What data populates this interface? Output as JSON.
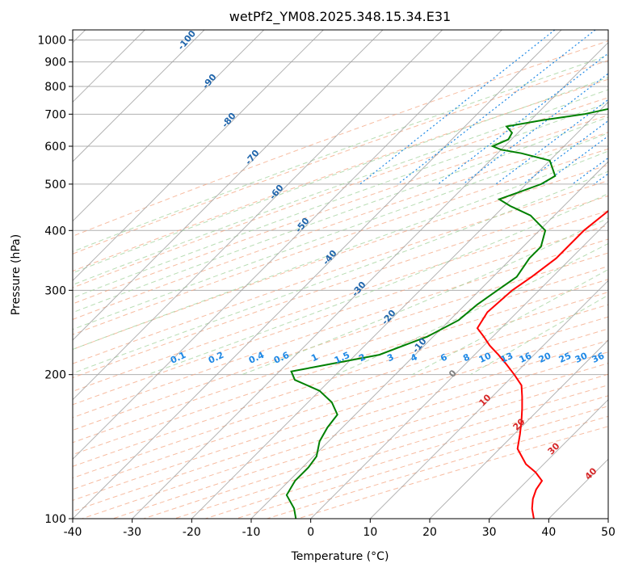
{
  "chart_data": {
    "type": "line",
    "title": "wetPf2_YM08.2025.348.15.34.E31",
    "xlabel": "Temperature (°C)",
    "ylabel": "Pressure (hPa)",
    "xlim": [
      -40,
      50
    ],
    "ylim": [
      1050,
      100
    ],
    "y_scale": "log",
    "grid": true,
    "x_ticks": [
      -40,
      -30,
      -20,
      -10,
      0,
      10,
      20,
      30,
      40,
      50
    ],
    "y_ticks": [
      100,
      200,
      300,
      400,
      500,
      600,
      700,
      800,
      900,
      1000
    ],
    "colors": {
      "temperature": "#ff0000",
      "dewpoint": "#008000",
      "isotherm": "#a0a0a0",
      "dry_adiabat": "#f4a582",
      "moist_adiabat": "#a6d4a0",
      "mixing_ratio": "#1e88e5",
      "dry_adiabat_label": "#2166ac",
      "moist_label": "#808080",
      "moist_label_warm": "#d62728"
    },
    "series": [
      {
        "values": [
          [
            1000,
            3.0
          ],
          [
            975,
            2.5
          ],
          [
            950,
            1.5
          ],
          [
            925,
            0.5
          ],
          [
            900,
            -0.5
          ],
          [
            880,
            -1.5
          ],
          [
            865,
            -0.5
          ],
          [
            850,
            1.5
          ],
          [
            825,
            1.8
          ],
          [
            800,
            1.5
          ],
          [
            775,
            2.2
          ],
          [
            750,
            2.2
          ],
          [
            700,
            1.5
          ],
          [
            650,
            1.0
          ],
          [
            600,
            1.5
          ],
          [
            550,
            0.5
          ],
          [
            500,
            -0.5
          ],
          [
            450,
            -1.5
          ],
          [
            400,
            -2.5
          ],
          [
            350,
            -2.5
          ],
          [
            320,
            -3.5
          ],
          [
            300,
            -4.5
          ],
          [
            270,
            -5.0
          ],
          [
            250,
            -4.0
          ],
          [
            240,
            -1.5
          ],
          [
            230,
            1.0
          ],
          [
            220,
            4.0
          ],
          [
            210,
            7.0
          ],
          [
            200,
            10.0
          ],
          [
            190,
            13.0
          ],
          [
            180,
            15.0
          ],
          [
            170,
            17.0
          ],
          [
            160,
            19.0
          ],
          [
            150,
            21.0
          ],
          [
            140,
            23.0
          ],
          [
            130,
            27.0
          ],
          [
            125,
            30.0
          ],
          [
            120,
            32.5
          ],
          [
            115,
            33.0
          ],
          [
            110,
            34.0
          ],
          [
            105,
            35.5
          ],
          [
            100,
            37.5
          ]
        ]
      },
      {
        "values": [
          [
            1000,
            1.0
          ],
          [
            975,
            0.5
          ],
          [
            950,
            -0.5
          ],
          [
            925,
            -1.0
          ],
          [
            900,
            -2.0
          ],
          [
            880,
            -3.0
          ],
          [
            870,
            -4.0
          ],
          [
            860,
            -3.5
          ],
          [
            850,
            -4.0
          ],
          [
            820,
            -4.0
          ],
          [
            800,
            -4.5
          ],
          [
            780,
            -7.0
          ],
          [
            760,
            -11.0
          ],
          [
            740,
            -15.0
          ],
          [
            700,
            -22.0
          ],
          [
            680,
            -28.0
          ],
          [
            660,
            -33.0
          ],
          [
            640,
            -31.0
          ],
          [
            620,
            -30.5
          ],
          [
            600,
            -32.0
          ],
          [
            590,
            -30.0
          ],
          [
            580,
            -26.0
          ],
          [
            560,
            -20.0
          ],
          [
            520,
            -16.5
          ],
          [
            500,
            -17.5
          ],
          [
            480,
            -20.0
          ],
          [
            465,
            -22.0
          ],
          [
            450,
            -19.0
          ],
          [
            430,
            -14.0
          ],
          [
            400,
            -9.0
          ],
          [
            370,
            -7.0
          ],
          [
            350,
            -7.0
          ],
          [
            320,
            -6.0
          ],
          [
            300,
            -7.0
          ],
          [
            280,
            -8.0
          ],
          [
            260,
            -8.5
          ],
          [
            240,
            -11.0
          ],
          [
            220,
            -16.0
          ],
          [
            210,
            -23.0
          ],
          [
            203,
            -28.0
          ],
          [
            195,
            -26.0
          ],
          [
            185,
            -20.0
          ],
          [
            175,
            -16.0
          ],
          [
            165,
            -13.0
          ],
          [
            155,
            -12.5
          ],
          [
            145,
            -11.5
          ],
          [
            135,
            -9.5
          ],
          [
            128,
            -9.0
          ],
          [
            120,
            -9.0
          ],
          [
            112,
            -8.0
          ],
          [
            105,
            -4.5
          ],
          [
            100,
            -2.5
          ]
        ]
      }
    ],
    "dry_adiabat_labels": [
      "-100",
      "-90",
      "-80",
      "-70",
      "-60",
      "-50",
      "-40",
      "-30",
      "-20",
      "-10"
    ],
    "mixing_ratio_labels": [
      "0.1",
      "0.2",
      "0.4",
      "0.6",
      "1",
      "1.5",
      "2",
      "3",
      "4",
      "6",
      "8",
      "10",
      "13",
      "16",
      "20",
      "25",
      "30",
      "36"
    ],
    "moist_adiabat_labels": [
      "0",
      "10",
      "20",
      "30",
      "40"
    ]
  }
}
